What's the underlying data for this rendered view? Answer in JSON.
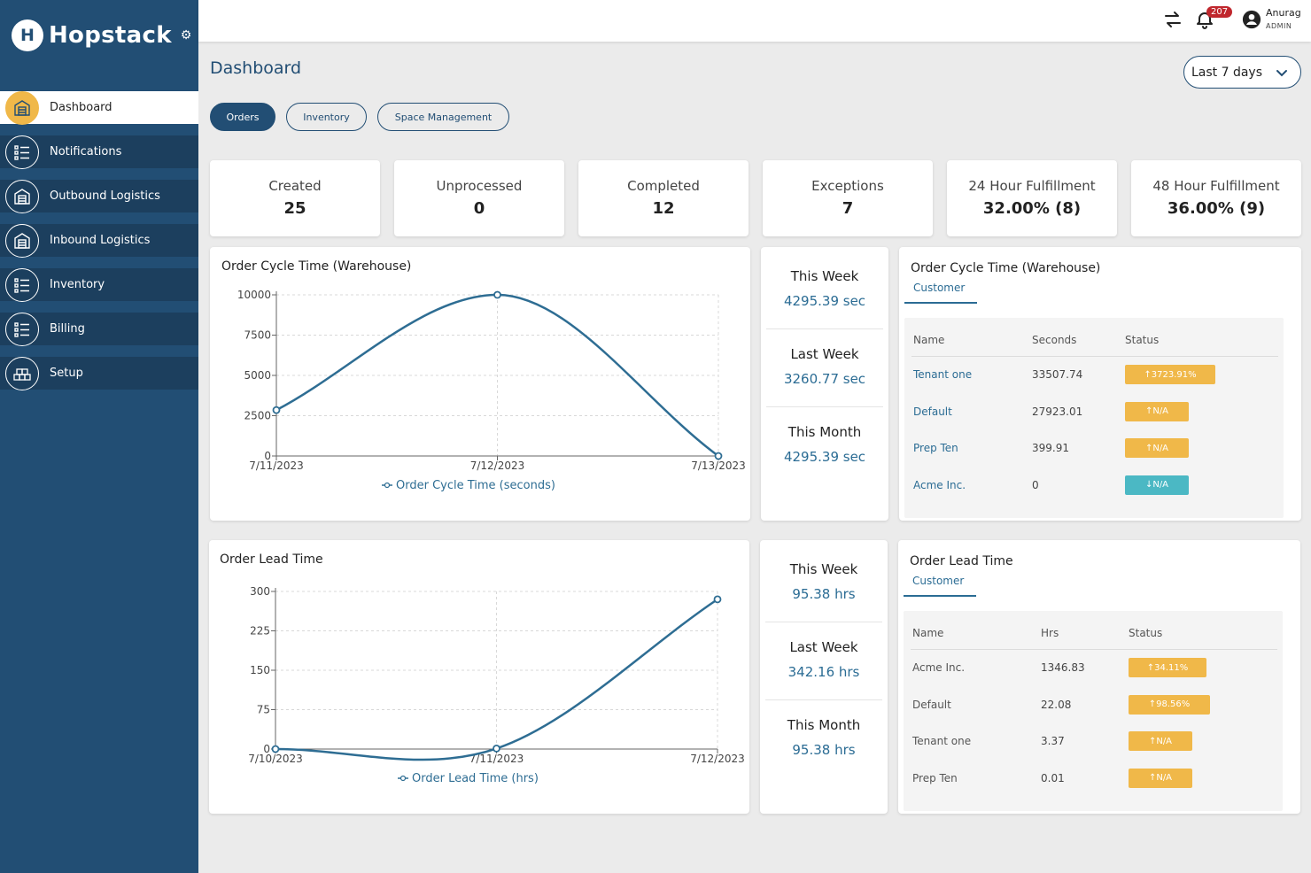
{
  "app": {
    "logo_letter": "H",
    "name": "Hopstack"
  },
  "sidebar": {
    "items": [
      {
        "label": "Dashboard",
        "icon": "warehouse-icon",
        "active": true
      },
      {
        "label": "Notifications",
        "icon": "list-icon",
        "active": false
      },
      {
        "label": "Outbound Logistics",
        "icon": "warehouse-icon",
        "active": false
      },
      {
        "label": "Inbound Logistics",
        "icon": "warehouse-icon",
        "active": false
      },
      {
        "label": "Inventory",
        "icon": "list-icon",
        "active": false
      },
      {
        "label": "Billing",
        "icon": "list-icon",
        "active": false
      },
      {
        "label": "Setup",
        "icon": "cubes-icon",
        "active": false
      }
    ]
  },
  "topbar": {
    "notification_count": "207",
    "user_name": "Anurag",
    "user_role": "ADMIN"
  },
  "header": {
    "title": "Dashboard",
    "range": "Last 7 days"
  },
  "tabs": [
    {
      "label": "Orders",
      "active": true
    },
    {
      "label": "Inventory",
      "active": false
    },
    {
      "label": "Space Management",
      "active": false
    }
  ],
  "stats": [
    {
      "label": "Created",
      "value": "25"
    },
    {
      "label": "Unprocessed",
      "value": "0"
    },
    {
      "label": "Completed",
      "value": "12"
    },
    {
      "label": "Exceptions",
      "value": "7"
    },
    {
      "label": "24 Hour Fulfillment",
      "value": "32.00% (8)"
    },
    {
      "label": "48 Hour Fulfillment",
      "value": "36.00% (9)"
    }
  ],
  "cycle": {
    "title": "Order Cycle Time (Warehouse)",
    "periods": [
      {
        "label": "This Week",
        "value": "4295.39 sec"
      },
      {
        "label": "Last Week",
        "value": "3260.77 sec"
      },
      {
        "label": "This Month",
        "value": "4295.39 sec"
      }
    ],
    "table": {
      "title": "Order Cycle Time (Warehouse)",
      "tab": "Customer",
      "headers": [
        "Name",
        "Seconds",
        "Status"
      ],
      "rows": [
        {
          "name": "Tenant one",
          "value": "33507.74",
          "status": "↑3723.91%",
          "status_color": "#f0b849"
        },
        {
          "name": "Default",
          "value": "27923.01",
          "status": "↑N/A",
          "status_color": "#f0b849"
        },
        {
          "name": "Prep Ten",
          "value": "399.91",
          "status": "↑N/A",
          "status_color": "#f0b849"
        },
        {
          "name": "Acme Inc.",
          "value": "0",
          "status": "↓N/A",
          "status_color": "#4bb8c4"
        }
      ]
    }
  },
  "lead": {
    "title": "Order Lead Time",
    "periods": [
      {
        "label": "This Week",
        "value": "95.38 hrs"
      },
      {
        "label": "Last Week",
        "value": "342.16 hrs"
      },
      {
        "label": "This Month",
        "value": "95.38 hrs"
      }
    ],
    "table": {
      "title": "Order Lead Time",
      "tab": "Customer",
      "headers": [
        "Name",
        "Hrs",
        "Status"
      ],
      "rows": [
        {
          "name": "Acme Inc.",
          "value": "1346.83",
          "status": "↑34.11%",
          "status_color": "#f0b849"
        },
        {
          "name": "Default",
          "value": "22.08",
          "status": "↑98.56%",
          "status_color": "#f0b849"
        },
        {
          "name": "Tenant one",
          "value": "3.37",
          "status": "↑N/A",
          "status_color": "#f0b849"
        },
        {
          "name": "Prep Ten",
          "value": "0.01",
          "status": "↑N/A",
          "status_color": "#f0b849"
        }
      ]
    }
  },
  "chart_data": [
    {
      "type": "line",
      "title": "Order Cycle Time (Warehouse)",
      "categories": [
        "7/11/2023",
        "7/12/2023",
        "7/13/2023"
      ],
      "series": [
        {
          "name": "Order Cycle Time (seconds)",
          "values": [
            2850,
            10000,
            0
          ]
        }
      ],
      "yticks": [
        "0",
        "2500",
        "5000",
        "7500",
        "10000"
      ],
      "ylim": [
        0,
        10000
      ],
      "grid": true,
      "legend": "bottom",
      "color": "#2e6d93"
    },
    {
      "type": "line",
      "title": "Order Lead Time",
      "categories": [
        "7/10/2023",
        "7/11/2023",
        "7/12/2023"
      ],
      "series": [
        {
          "name": "Order Lead Time (hrs)",
          "values": [
            0,
            1,
            285
          ]
        }
      ],
      "yticks": [
        "0",
        "75",
        "150",
        "225",
        "300"
      ],
      "ylim": [
        0,
        300
      ],
      "grid": true,
      "legend": "bottom",
      "color": "#2e6d93"
    }
  ]
}
